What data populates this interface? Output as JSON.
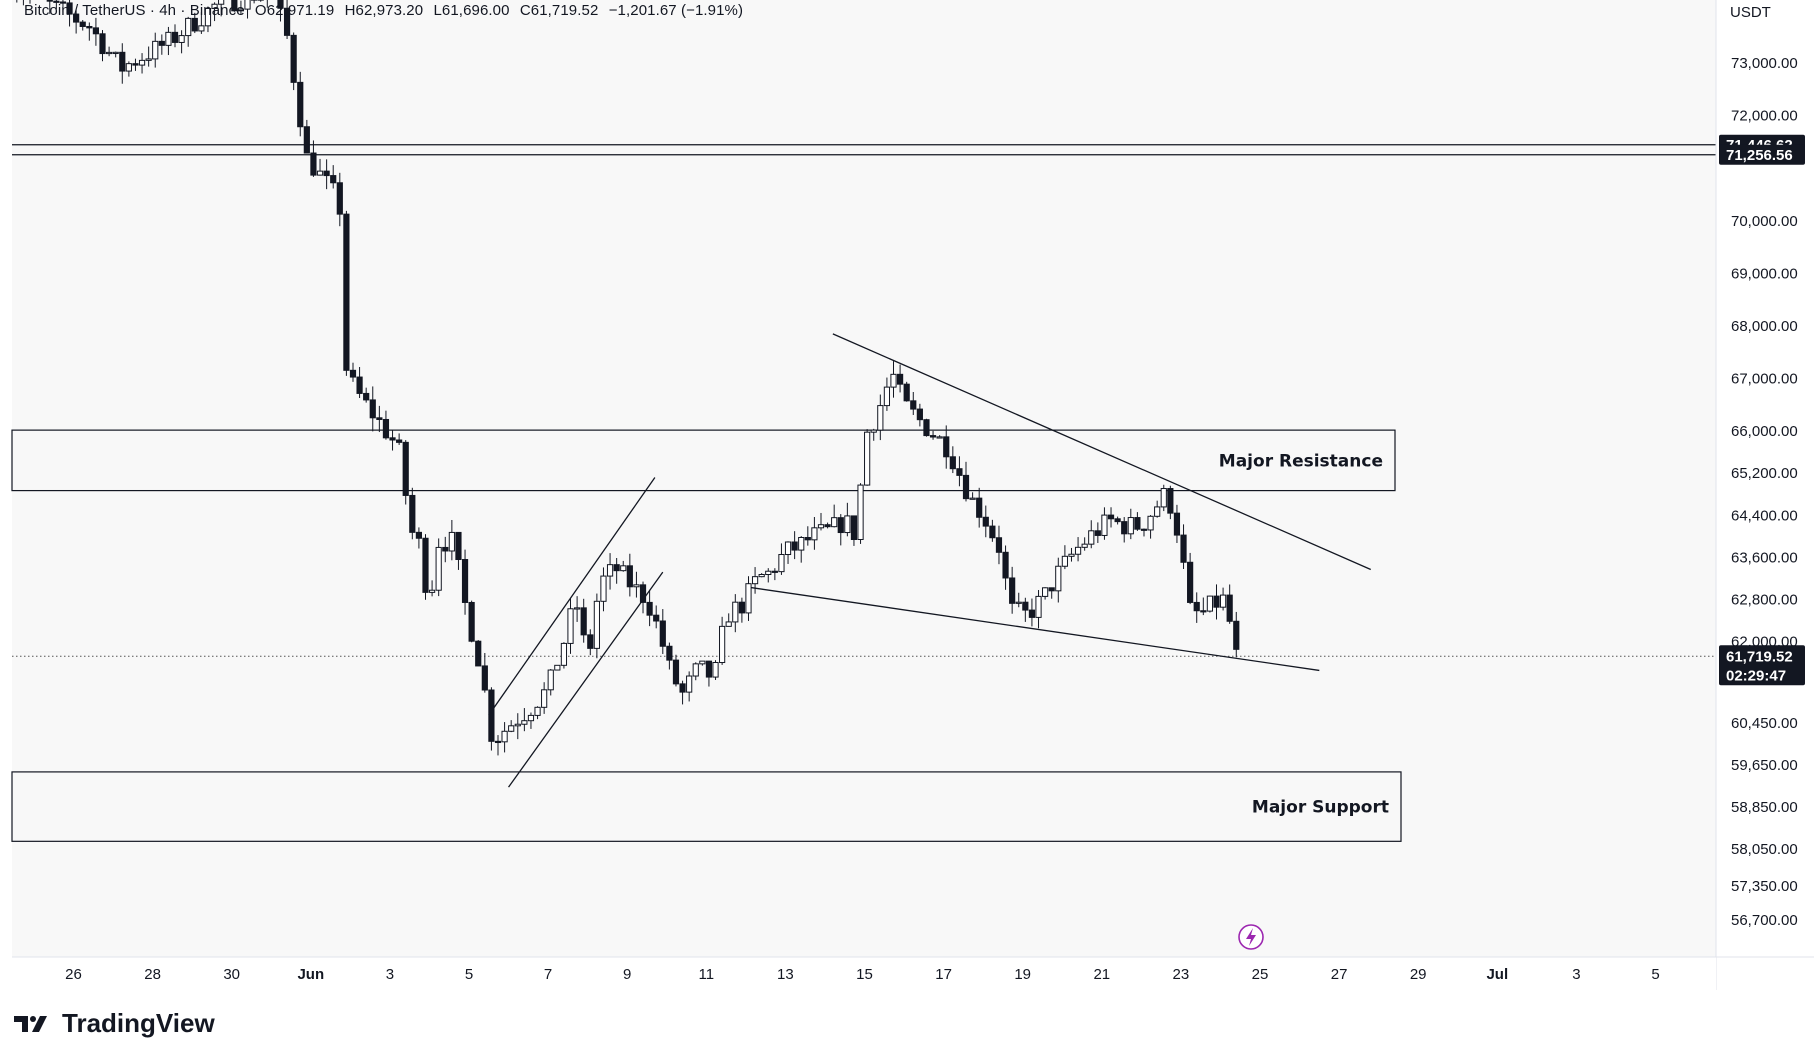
{
  "header": {
    "symbol": "Bitcoin / TetherUS · 4h · Binance",
    "open": "O62,971.19",
    "high": "H62,973.20",
    "low": "L61,696.00",
    "close": "C61,719.52",
    "change": "−1,201.67 (−1.91%)"
  },
  "axis_unit": "USDT",
  "brand": "TradingView",
  "colors": {
    "candle": "#131722",
    "background": "#f8f8f8",
    "flash_icon": "#9c27b0"
  },
  "chart_data": {
    "type": "candlestick",
    "title": "Bitcoin / TetherUS · 4h · Binance",
    "ylabel": "USDT",
    "ylim": [
      56000,
      74200
    ],
    "y_ticks": [
      "73,000.00",
      "72,000.00",
      "70,000.00",
      "69,000.00",
      "68,000.00",
      "67,000.00",
      "66,000.00",
      "65,200.00",
      "64,400.00",
      "63,600.00",
      "62,800.00",
      "62,000.00",
      "60,450.00",
      "59,650.00",
      "58,850.00",
      "58,050.00",
      "57,350.00",
      "56,700.00"
    ],
    "y_tick_values": [
      73000,
      72000,
      70000,
      69000,
      68000,
      67000,
      66000,
      65200,
      64400,
      63600,
      62800,
      62000,
      60450,
      59650,
      58850,
      58050,
      57350,
      56700
    ],
    "x_ticks": [
      "26",
      "28",
      "30",
      "Jun",
      "3",
      "5",
      "7",
      "9",
      "11",
      "13",
      "15",
      "17",
      "19",
      "21",
      "23",
      "25",
      "27",
      "29",
      "Jul",
      "3",
      "5"
    ],
    "x_tick_days": [
      -5,
      -3,
      -1,
      1,
      3,
      5,
      7,
      9,
      11,
      13,
      15,
      17,
      19,
      21,
      23,
      25,
      27,
      29,
      31,
      33,
      35
    ],
    "price_lines": [
      {
        "label": "71,446.62",
        "value": 71446.62
      },
      {
        "label": "71,256.56",
        "value": 71256.56
      }
    ],
    "last_price": {
      "label": "61,719.52",
      "value": 61719.52,
      "countdown": "02:29:47"
    },
    "zones": [
      {
        "label": "Major Resistance",
        "low": 64870,
        "high": 66020
      },
      {
        "label": "Major Support",
        "low": 58200,
        "high": 59520
      }
    ],
    "trendlines": [
      {
        "name": "descending-resistance",
        "points": [
          [
            14.2,
            67850
          ],
          [
            27.8,
            63370
          ]
        ]
      },
      {
        "name": "lower-support",
        "points": [
          [
            12.0,
            63040
          ],
          [
            26.5,
            61450
          ]
        ]
      },
      {
        "name": "channel-lower",
        "points": [
          [
            6.0,
            59230
          ],
          [
            9.9,
            63320
          ]
        ]
      },
      {
        "name": "channel-upper",
        "points": [
          [
            5.5,
            60600
          ],
          [
            9.7,
            65120
          ]
        ]
      }
    ],
    "anchors": [
      [
        -6.6,
        74500
      ],
      [
        -4.6,
        73700
      ],
      [
        -3.8,
        72900
      ],
      [
        -2.6,
        73400
      ],
      [
        -1.4,
        74100
      ],
      [
        0.0,
        74400
      ],
      [
        0.4,
        73500
      ],
      [
        0.6,
        72600
      ],
      [
        0.9,
        71200
      ],
      [
        1.2,
        70900
      ],
      [
        1.6,
        70500
      ],
      [
        1.8,
        70100
      ],
      [
        1.9,
        67200
      ],
      [
        2.1,
        66800
      ],
      [
        2.5,
        66400
      ],
      [
        2.8,
        66100
      ],
      [
        3.0,
        65900
      ],
      [
        3.1,
        65800
      ],
      [
        3.3,
        65500
      ],
      [
        3.5,
        64100
      ],
      [
        3.7,
        64000
      ],
      [
        4.0,
        62700
      ],
      [
        4.2,
        63900
      ],
      [
        4.6,
        63900
      ],
      [
        4.9,
        62700
      ],
      [
        5.3,
        61500
      ],
      [
        5.6,
        60100
      ],
      [
        6.0,
        60400
      ],
      [
        6.5,
        60700
      ],
      [
        7.0,
        61100
      ],
      [
        7.4,
        62000
      ],
      [
        7.7,
        62800
      ],
      [
        8.0,
        61600
      ],
      [
        8.3,
        63100
      ],
      [
        8.7,
        63400
      ],
      [
        9.2,
        63000
      ],
      [
        9.5,
        62800
      ],
      [
        9.8,
        62200
      ],
      [
        10.1,
        61400
      ],
      [
        10.4,
        61000
      ],
      [
        10.8,
        61500
      ],
      [
        11.2,
        61300
      ],
      [
        11.5,
        62500
      ],
      [
        11.9,
        62700
      ],
      [
        12.3,
        63200
      ],
      [
        12.6,
        63300
      ],
      [
        13.0,
        63700
      ],
      [
        13.3,
        63800
      ],
      [
        13.7,
        64000
      ],
      [
        14.1,
        64100
      ],
      [
        14.5,
        64300
      ],
      [
        14.8,
        64000
      ],
      [
        15.0,
        65900
      ],
      [
        15.3,
        66300
      ],
      [
        15.5,
        66700
      ],
      [
        15.7,
        67100
      ],
      [
        16.0,
        66500
      ],
      [
        16.4,
        66200
      ],
      [
        16.8,
        65900
      ],
      [
        17.1,
        65700
      ],
      [
        17.4,
        65200
      ],
      [
        17.7,
        64700
      ],
      [
        18.0,
        64400
      ],
      [
        18.4,
        63800
      ],
      [
        18.7,
        62600
      ],
      [
        19.1,
        62500
      ],
      [
        19.5,
        62800
      ],
      [
        19.9,
        63300
      ],
      [
        20.3,
        63700
      ],
      [
        20.7,
        64000
      ],
      [
        21.2,
        64300
      ],
      [
        21.6,
        64200
      ],
      [
        22.0,
        64200
      ],
      [
        22.3,
        64500
      ],
      [
        22.6,
        64800
      ],
      [
        22.8,
        64500
      ],
      [
        23.0,
        63800
      ],
      [
        23.2,
        62600
      ],
      [
        23.5,
        62500
      ],
      [
        23.8,
        62700
      ],
      [
        24.1,
        62800
      ],
      [
        24.2,
        62500
      ],
      [
        24.4,
        61720
      ]
    ],
    "grid": false,
    "legend": "none"
  }
}
